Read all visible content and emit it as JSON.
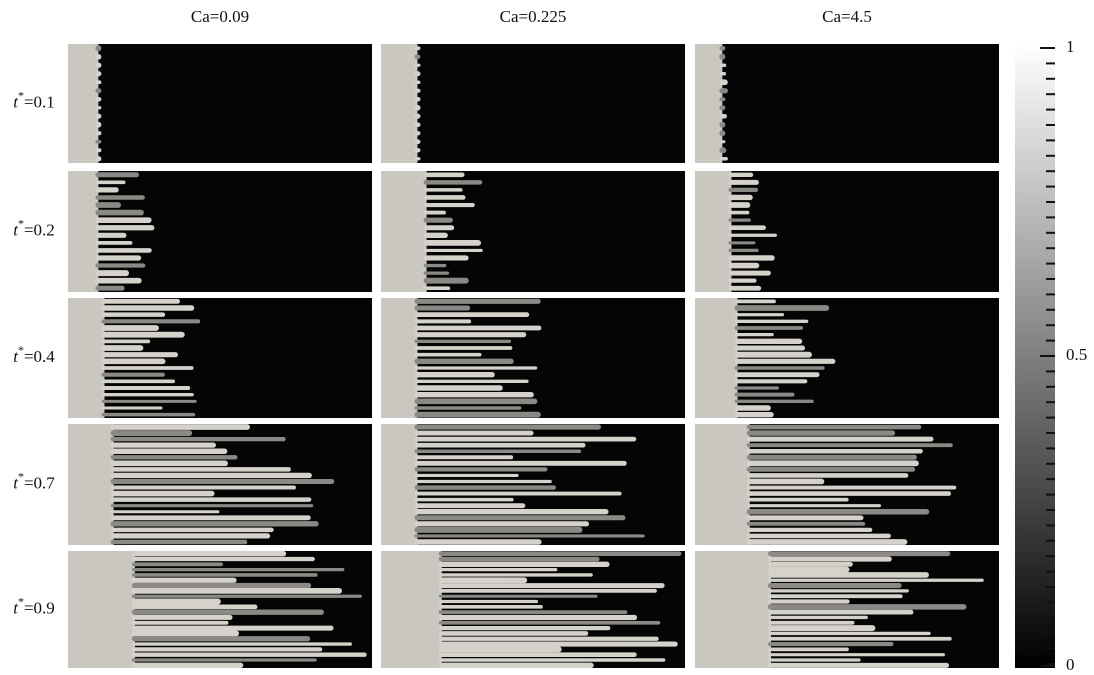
{
  "columns": [
    "Ca=0.09",
    "Ca=0.225",
    "Ca=4.5"
  ],
  "rows": [
    {
      "var": "t",
      "sup": "*",
      "rest": "=0.1"
    },
    {
      "var": "t",
      "sup": "*",
      "rest": "=0.2"
    },
    {
      "var": "t",
      "sup": "*",
      "rest": "=0.4"
    },
    {
      "var": "t",
      "sup": "*",
      "rest": "=0.7"
    },
    {
      "var": "t",
      "sup": "*",
      "rest": "=0.9"
    }
  ],
  "colorbar": {
    "range": [
      0,
      1
    ],
    "ticks": [
      1,
      0.5,
      0
    ]
  }
}
